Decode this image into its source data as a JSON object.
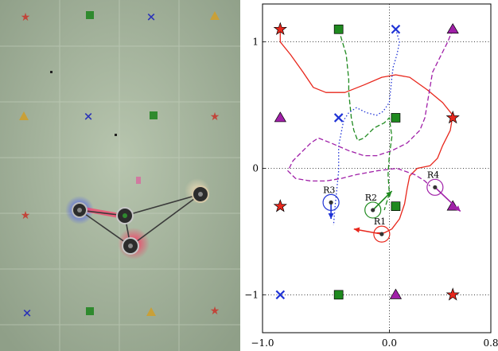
{
  "photo": {
    "floor_color": "#a9b9a1",
    "grid_color": "#c7d2c0",
    "marker_colors": {
      "star": "#c1453a",
      "square": "#2f8a2e",
      "cross": "#2a32b8",
      "triangle": "#c9a038"
    },
    "glow_colors": [
      "#2436ff",
      "#ff2a55",
      "#ff3a6a",
      "#e8d8b0"
    ],
    "line_color": "#3a3a3a"
  },
  "chart_data": {
    "type": "scatter",
    "title": "",
    "xlabel": "",
    "ylabel": "",
    "xlim": [
      -1.0,
      0.8
    ],
    "ylim": [
      -1.3,
      1.3
    ],
    "x_ticks": [
      -1.0,
      0.0,
      0.8
    ],
    "x_tick_labels": [
      "−1.0",
      "0.0",
      "0.8"
    ],
    "y_ticks": [
      -1,
      0,
      1
    ],
    "y_tick_labels": [
      "−1",
      "0",
      "1"
    ],
    "zero_lines": "dotted",
    "markers": [
      {
        "shape": "star",
        "color": "#e8271c",
        "x": -0.86,
        "y": 1.1
      },
      {
        "shape": "square",
        "color": "#1f8a1f",
        "x": -0.4,
        "y": 1.1
      },
      {
        "shape": "cross",
        "color": "#1f33d6",
        "x": 0.05,
        "y": 1.1
      },
      {
        "shape": "triangle",
        "color": "#a020a8",
        "x": 0.5,
        "y": 1.1
      },
      {
        "shape": "triangle",
        "color": "#a020a8",
        "x": -0.86,
        "y": 0.4
      },
      {
        "shape": "cross",
        "color": "#1f33d6",
        "x": -0.4,
        "y": 0.4
      },
      {
        "shape": "square",
        "color": "#1f8a1f",
        "x": 0.05,
        "y": 0.4
      },
      {
        "shape": "star",
        "color": "#e8271c",
        "x": 0.5,
        "y": 0.4
      },
      {
        "shape": "star",
        "color": "#e8271c",
        "x": -0.86,
        "y": -0.3
      },
      {
        "shape": "square",
        "color": "#1f8a1f",
        "x": 0.05,
        "y": -0.3
      },
      {
        "shape": "triangle",
        "color": "#a020a8",
        "x": 0.5,
        "y": -0.3
      },
      {
        "shape": "cross",
        "color": "#1f33d6",
        "x": -0.86,
        "y": -1.0
      },
      {
        "shape": "square",
        "color": "#1f8a1f",
        "x": -0.4,
        "y": -1.0
      },
      {
        "shape": "triangle",
        "color": "#a020a8",
        "x": 0.05,
        "y": -1.0
      },
      {
        "shape": "star",
        "color": "#e8271c",
        "x": 0.5,
        "y": -1.0
      }
    ],
    "series": [
      {
        "color": "#e8271c",
        "dash": "solid",
        "points": [
          [
            -0.86,
            1.1
          ],
          [
            -0.86,
            1.0
          ],
          [
            -0.78,
            0.9
          ],
          [
            -0.68,
            0.76
          ],
          [
            -0.6,
            0.64
          ],
          [
            -0.5,
            0.6
          ],
          [
            -0.35,
            0.6
          ],
          [
            -0.2,
            0.66
          ],
          [
            -0.06,
            0.72
          ],
          [
            0.05,
            0.74
          ],
          [
            0.16,
            0.72
          ],
          [
            0.3,
            0.62
          ],
          [
            0.42,
            0.52
          ],
          [
            0.5,
            0.42
          ],
          [
            0.48,
            0.3
          ],
          [
            0.42,
            0.18
          ],
          [
            0.38,
            0.08
          ],
          [
            0.32,
            0.02
          ],
          [
            0.22,
            0.0
          ],
          [
            0.16,
            -0.06
          ],
          [
            0.14,
            -0.16
          ],
          [
            0.12,
            -0.28
          ],
          [
            0.08,
            -0.4
          ],
          [
            0.02,
            -0.48
          ],
          [
            -0.04,
            -0.51
          ],
          [
            -0.1,
            -0.51
          ]
        ]
      },
      {
        "color": "#1f8a1f",
        "dash": "dashed",
        "points": [
          [
            -0.4,
            1.1
          ],
          [
            -0.37,
            1.0
          ],
          [
            -0.34,
            0.9
          ],
          [
            -0.33,
            0.8
          ],
          [
            -0.32,
            0.7
          ],
          [
            -0.32,
            0.6
          ],
          [
            -0.31,
            0.5
          ],
          [
            -0.3,
            0.4
          ],
          [
            -0.28,
            0.3
          ],
          [
            -0.25,
            0.22
          ],
          [
            -0.2,
            0.24
          ],
          [
            -0.12,
            0.32
          ],
          [
            -0.04,
            0.36
          ],
          [
            0.0,
            0.4
          ],
          [
            0.02,
            0.25
          ],
          [
            0.0,
            0.1
          ],
          [
            -0.01,
            -0.05
          ],
          [
            0.0,
            -0.2
          ],
          [
            -0.04,
            -0.33
          ]
        ]
      },
      {
        "color": "#1f33d6",
        "dash": "dotted",
        "points": [
          [
            0.05,
            1.1
          ],
          [
            0.08,
            1.0
          ],
          [
            0.06,
            0.9
          ],
          [
            0.03,
            0.8
          ],
          [
            0.02,
            0.72
          ],
          [
            0.01,
            0.62
          ],
          [
            0.0,
            0.52
          ],
          [
            -0.05,
            0.45
          ],
          [
            -0.1,
            0.42
          ],
          [
            -0.18,
            0.44
          ],
          [
            -0.26,
            0.48
          ],
          [
            -0.32,
            0.44
          ],
          [
            -0.36,
            0.38
          ],
          [
            -0.38,
            0.28
          ],
          [
            -0.4,
            0.18
          ],
          [
            -0.4,
            0.08
          ],
          [
            -0.4,
            -0.02
          ],
          [
            -0.41,
            -0.12
          ],
          [
            -0.42,
            -0.22
          ],
          [
            -0.43,
            -0.32
          ],
          [
            -0.44,
            -0.45
          ]
        ]
      },
      {
        "color": "#a020a8",
        "dash": "dashed",
        "points": [
          [
            0.5,
            1.1
          ],
          [
            0.46,
            1.0
          ],
          [
            0.4,
            0.88
          ],
          [
            0.34,
            0.76
          ],
          [
            0.32,
            0.64
          ],
          [
            0.3,
            0.52
          ],
          [
            0.28,
            0.4
          ],
          [
            0.24,
            0.3
          ],
          [
            0.14,
            0.2
          ],
          [
            0.02,
            0.14
          ],
          [
            -0.1,
            0.1
          ],
          [
            -0.2,
            0.1
          ],
          [
            -0.32,
            0.14
          ],
          [
            -0.46,
            0.2
          ],
          [
            -0.56,
            0.24
          ],
          [
            -0.62,
            0.2
          ],
          [
            -0.7,
            0.12
          ],
          [
            -0.76,
            0.06
          ],
          [
            -0.8,
            -0.02
          ],
          [
            -0.74,
            -0.08
          ],
          [
            -0.62,
            -0.1
          ],
          [
            -0.5,
            -0.1
          ],
          [
            -0.38,
            -0.08
          ],
          [
            -0.26,
            -0.05
          ],
          [
            -0.1,
            -0.02
          ],
          [
            0.06,
            0.0
          ],
          [
            0.2,
            -0.05
          ],
          [
            0.28,
            -0.1
          ],
          [
            0.32,
            -0.14
          ]
        ]
      }
    ],
    "robots": [
      {
        "label": "R1",
        "color": "#e8271c",
        "x": -0.06,
        "y": -0.52,
        "arrow_to": [
          -0.28,
          -0.48
        ]
      },
      {
        "label": "R2",
        "color": "#1f8a1f",
        "x": -0.13,
        "y": -0.33,
        "arrow_to": [
          0.02,
          -0.18
        ]
      },
      {
        "label": "R3",
        "color": "#1f33d6",
        "x": -0.46,
        "y": -0.27,
        "arrow_to": [
          -0.46,
          -0.4
        ]
      },
      {
        "label": "R4",
        "color": "#a020a8",
        "x": 0.36,
        "y": -0.15,
        "arrow_to": [
          0.56,
          -0.34
        ]
      }
    ]
  }
}
